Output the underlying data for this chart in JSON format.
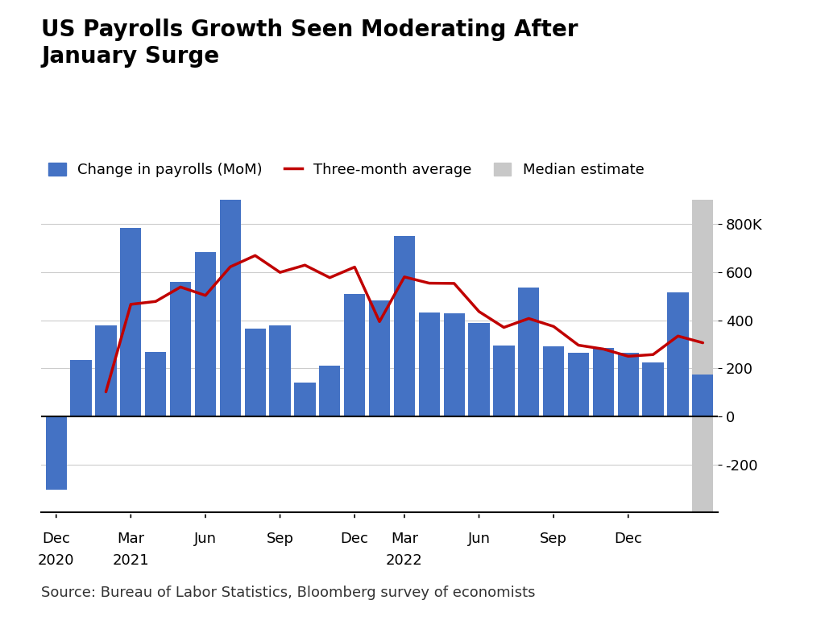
{
  "title": "US Payrolls Growth Seen Moderating After\nJanuary Surge",
  "source": "Source: Bureau of Labor Statistics, Bloomberg survey of economists",
  "legend_labels": [
    "Change in payrolls (MoM)",
    "Three-month average",
    "Median estimate"
  ],
  "bar_color": "#4472C4",
  "line_color": "#C00000",
  "median_color": "#C8C8C8",
  "bar_values": [
    -306,
    233,
    379,
    785,
    269,
    559,
    683,
    1053,
    366,
    379,
    142,
    210,
    510,
    481,
    750,
    431,
    428,
    390,
    293,
    537,
    292,
    263,
    284,
    263,
    223,
    517,
    175
  ],
  "line_values": [
    null,
    null,
    102,
    466,
    478,
    538,
    503,
    622,
    669,
    599,
    629,
    577,
    621,
    394,
    580,
    554,
    553,
    436,
    370,
    407,
    374,
    296,
    280,
    250,
    257,
    334,
    306
  ],
  "ylim": [
    -400,
    900
  ],
  "yticks": [
    -200,
    0,
    200,
    400,
    600,
    800
  ],
  "ytick_labels": [
    "-200",
    "0",
    "200",
    "400",
    "600",
    "800K"
  ],
  "xtick_positions": [
    0,
    3,
    6,
    9,
    12,
    14,
    17,
    20,
    23
  ],
  "xtick_labels_line1": [
    "Dec",
    "Mar",
    "Jun",
    "Sep",
    "Dec",
    "Mar",
    "Jun",
    "Sep",
    "Dec"
  ],
  "xtick_labels_line2": [
    "2020",
    "2021",
    "",
    "",
    "",
    "2022",
    "",
    "",
    ""
  ]
}
